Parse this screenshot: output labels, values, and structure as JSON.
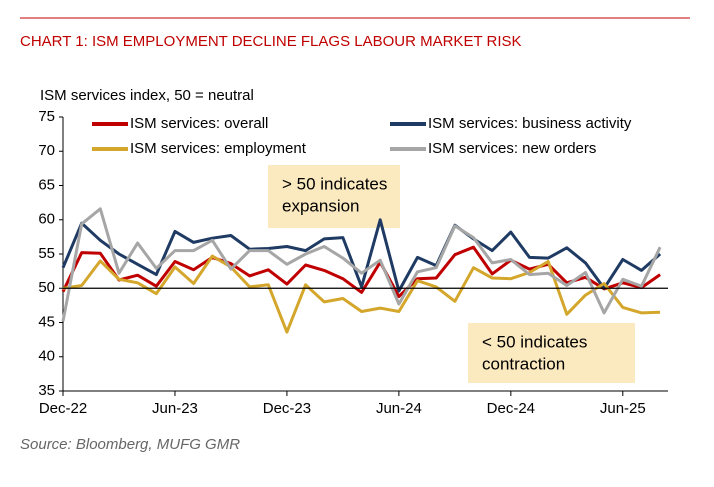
{
  "chart_data": {
    "type": "line",
    "title": "CHART 1: ISM EMPLOYMENT DECLINE FLAGS LABOUR MARKET RISK",
    "y_label": "ISM services index, 50 = neutral",
    "source": "Source: Bloomberg, MUFG GMR",
    "categories": [
      "Dec-22",
      null,
      null,
      null,
      null,
      null,
      "Jun-23",
      null,
      null,
      null,
      null,
      null,
      "Dec-23",
      null,
      null,
      null,
      null,
      null,
      "Jun-24",
      null,
      null,
      null,
      null,
      null,
      "Dec-24",
      null,
      null,
      null,
      null,
      null,
      "Jun-25",
      null,
      null
    ],
    "series": [
      {
        "name": "ISM services: overall",
        "color": "#c00000",
        "values": [
          49.5,
          55.2,
          55.1,
          51.2,
          51.9,
          50.3,
          53.9,
          52.7,
          54.5,
          53.6,
          51.8,
          52.7,
          50.6,
          53.4,
          52.6,
          51.4,
          49.4,
          53.8,
          48.8,
          51.4,
          51.5,
          54.9,
          56.0,
          52.1,
          54.1,
          52.8,
          53.5,
          50.8,
          51.6,
          49.9,
          50.8,
          50.1,
          52.0
        ]
      },
      {
        "name": "ISM services: business activity",
        "color": "#1f3b63",
        "values": [
          53,
          59.5,
          57,
          55,
          53.5,
          52,
          58.3,
          56.7,
          57.3,
          57.7,
          55.7,
          55.8,
          56.1,
          55.5,
          57.2,
          57.4,
          50.2,
          60,
          49.6,
          54.5,
          53.3,
          59.2,
          57.2,
          55.5,
          58.2,
          54.5,
          54.4,
          55.9,
          53.7,
          50.0,
          54.2,
          52.6,
          55.0
        ]
      },
      {
        "name": "ISM services: employment",
        "color": "#d4a72c",
        "values": [
          50,
          50.4,
          54,
          51.3,
          50.8,
          49.2,
          53.1,
          50.7,
          54.7,
          53.1,
          50.2,
          50.5,
          43.6,
          50.5,
          48.0,
          48.5,
          46.6,
          47.1,
          46.6,
          51.1,
          50.2,
          48.1,
          53.0,
          51.5,
          51.4,
          52.3,
          53.9,
          46.2,
          49.0,
          50.7,
          47.2,
          46.4,
          46.5
        ]
      },
      {
        "name": "ISM services: new orders",
        "color": "#a6a6a6",
        "values": [
          45.2,
          59.4,
          61.6,
          52.2,
          56.6,
          52.9,
          55.5,
          55.5,
          57,
          52.8,
          55.5,
          55.5,
          53.5,
          55.0,
          56.1,
          54.4,
          52.2,
          54.1,
          47.7,
          52.4,
          53.0,
          59.1,
          57.4,
          53.7,
          54.2,
          52.0,
          52.2,
          50.4,
          52.3,
          46.4,
          51.3,
          50.3,
          56.0
        ]
      }
    ],
    "ylim": [
      35,
      75
    ],
    "yticks": [
      35,
      40,
      45,
      50,
      55,
      60,
      65,
      70,
      75
    ],
    "reference_line": 50,
    "annotations": [
      [
        "> 50 indicates",
        "expansion"
      ],
      [
        "< 50 indicates",
        "contraction"
      ]
    ]
  }
}
